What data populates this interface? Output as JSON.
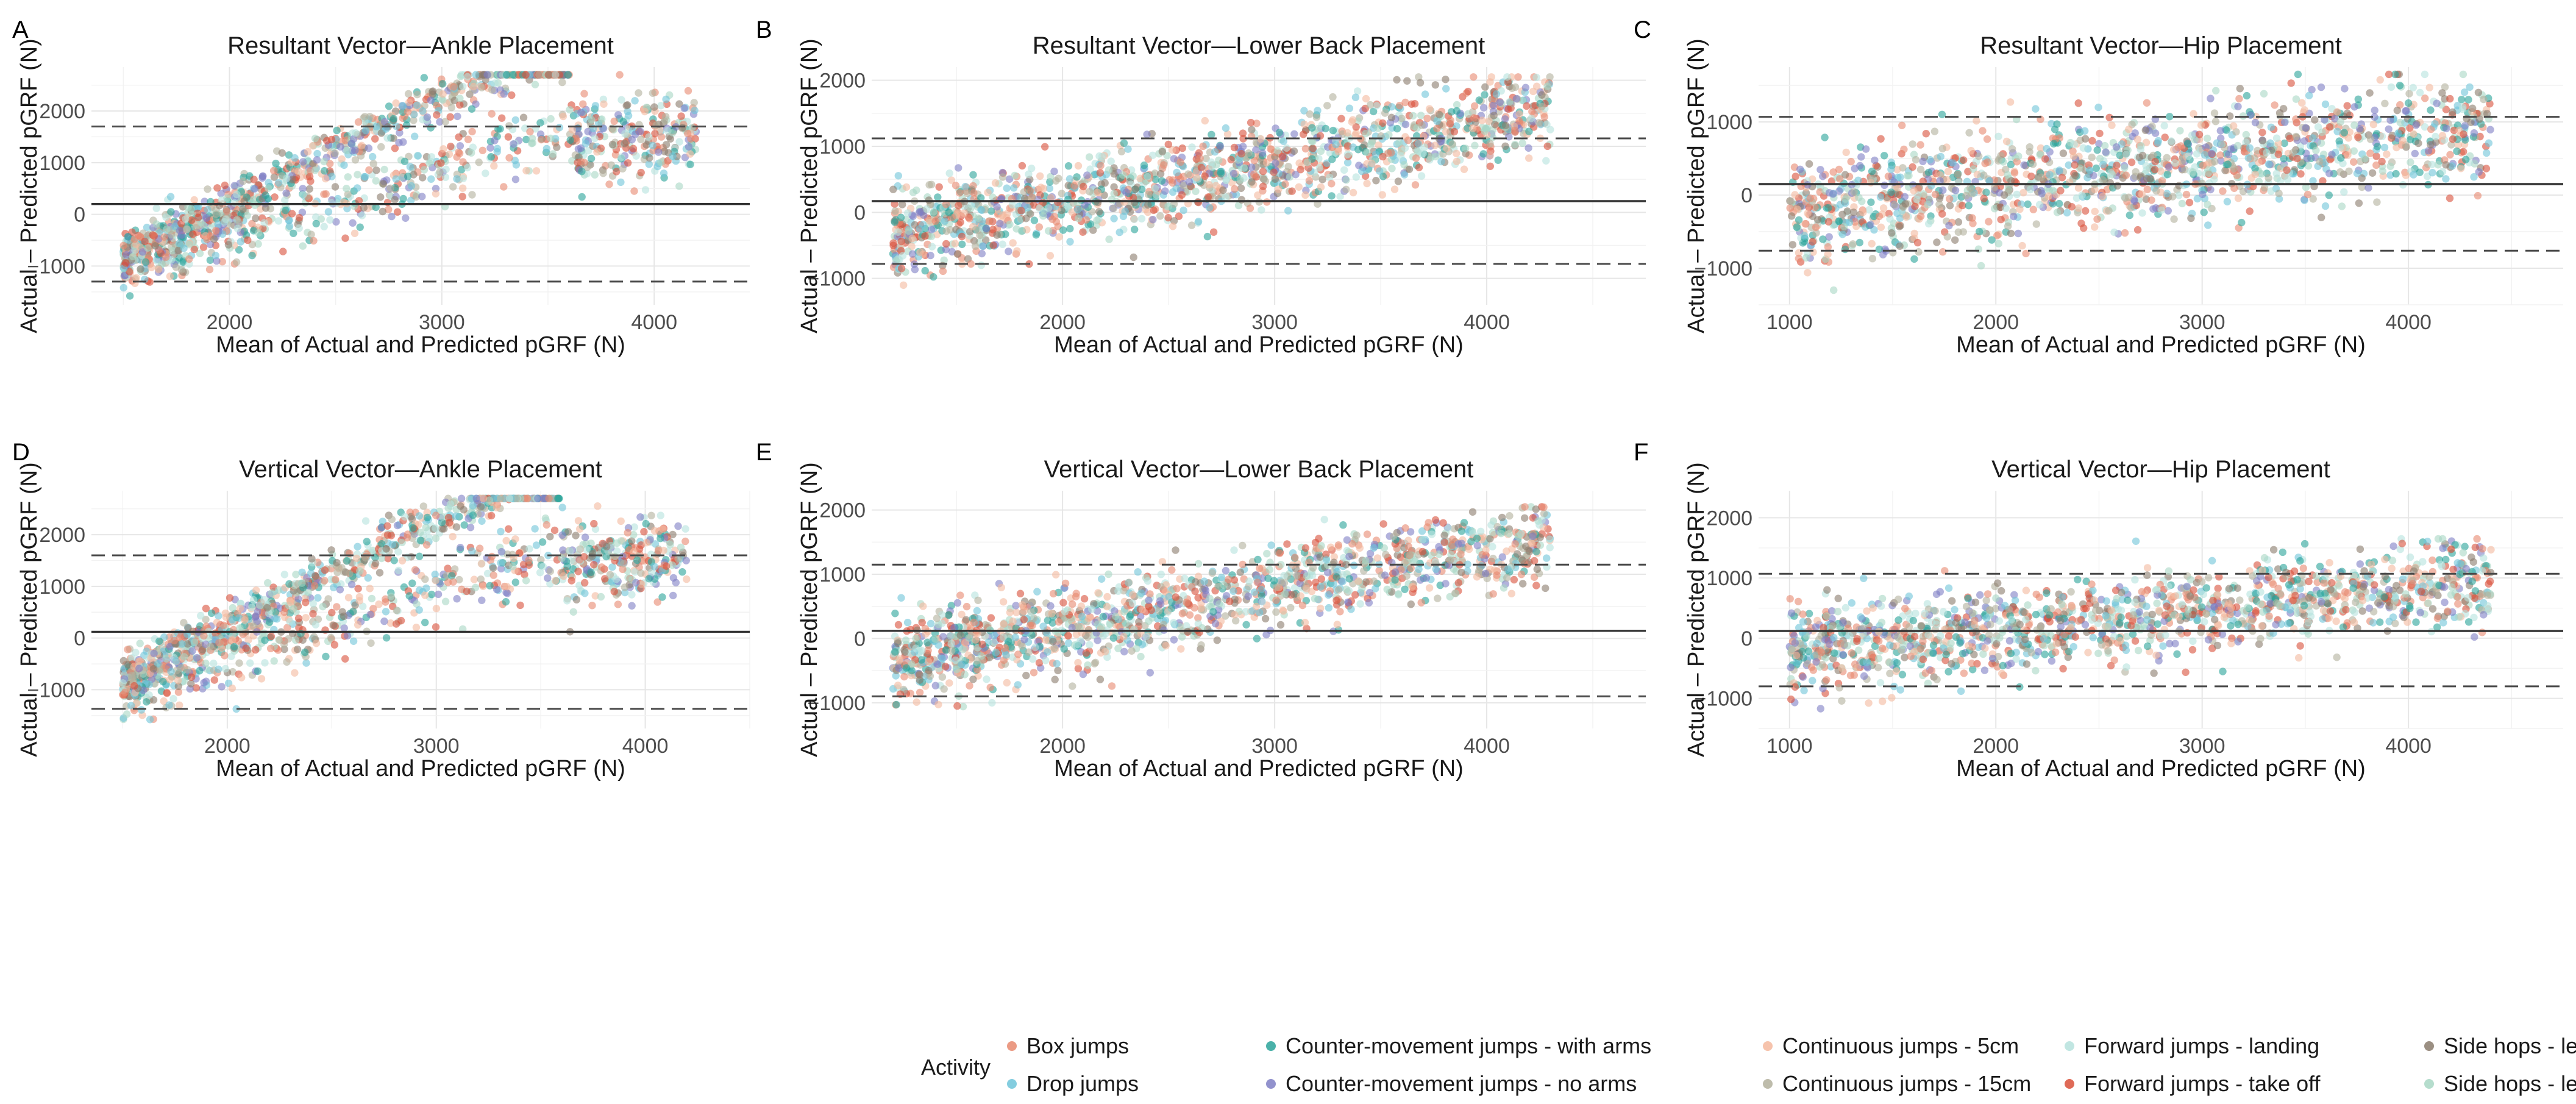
{
  "chart_data": [
    {
      "letter": "A",
      "type": "scatter",
      "title": "Resultant Vector—Ankle Placement",
      "xlabel": "Mean of Actual and Predicted pGRF (N)",
      "ylabel": "Actual – Predicted pGRF (N)",
      "xlim": [
        1350,
        4450
      ],
      "ylim": [
        -1750,
        2850
      ],
      "xticks": [
        2000,
        3000,
        4000
      ],
      "yticks": [
        -1000,
        0,
        1000,
        2000
      ],
      "bias": 200,
      "loa_upper": 1700,
      "loa_lower": -1300,
      "grid": true,
      "pattern": "ankle"
    },
    {
      "letter": "B",
      "type": "scatter",
      "title": "Resultant Vector—Lower Back Placement",
      "xlabel": "Mean of Actual and Predicted pGRF (N)",
      "ylabel": "Actual – Predicted pGRF (N)",
      "xlim": [
        1100,
        4750
      ],
      "ylim": [
        -1400,
        2200
      ],
      "xticks": [
        2000,
        3000,
        4000
      ],
      "yticks": [
        -1000,
        0,
        1000,
        2000
      ],
      "bias": 170,
      "loa_upper": 1120,
      "loa_lower": -780,
      "grid": true,
      "pattern": "back"
    },
    {
      "letter": "C",
      "type": "scatter",
      "title": "Resultant Vector—Hip Placement",
      "xlabel": "Mean of Actual and Predicted pGRF (N)",
      "ylabel": "Actual – Predicted pGRF (N)",
      "xlim": [
        850,
        4750
      ],
      "ylim": [
        -1500,
        1750
      ],
      "xticks": [
        1000,
        2000,
        3000,
        4000
      ],
      "yticks": [
        -1000,
        0,
        1000
      ],
      "bias": 150,
      "loa_upper": 1070,
      "loa_lower": -760,
      "grid": true,
      "pattern": "hip"
    },
    {
      "letter": "D",
      "type": "scatter",
      "title": "Vertical Vector—Ankle Placement",
      "xlabel": "Mean of Actual and Predicted pGRF (N)",
      "ylabel": "Actual – Predicted pGRF (N)",
      "xlim": [
        1350,
        4500
      ],
      "ylim": [
        -1750,
        2850
      ],
      "xticks": [
        2000,
        3000,
        4000
      ],
      "yticks": [
        -1000,
        0,
        1000,
        2000
      ],
      "bias": 120,
      "loa_upper": 1600,
      "loa_lower": -1370,
      "grid": true,
      "pattern": "ankle"
    },
    {
      "letter": "E",
      "type": "scatter",
      "title": "Vertical Vector—Lower Back Placement",
      "xlabel": "Mean of Actual and Predicted pGRF (N)",
      "ylabel": "Actual – Predicted pGRF (N)",
      "xlim": [
        1100,
        4750
      ],
      "ylim": [
        -1400,
        2300
      ],
      "xticks": [
        2000,
        3000,
        4000
      ],
      "yticks": [
        -1000,
        0,
        1000,
        2000
      ],
      "bias": 120,
      "loa_upper": 1150,
      "loa_lower": -900,
      "grid": true,
      "pattern": "back"
    },
    {
      "letter": "F",
      "type": "scatter",
      "title": "Vertical Vector—Hip Placement",
      "xlabel": "Mean of Actual and Predicted pGRF (N)",
      "ylabel": "Actual – Predicted pGRF (N)",
      "xlim": [
        850,
        4750
      ],
      "ylim": [
        -1500,
        2450
      ],
      "xticks": [
        1000,
        2000,
        3000,
        4000
      ],
      "yticks": [
        -1000,
        0,
        1000,
        2000
      ],
      "bias": 120,
      "loa_upper": 1070,
      "loa_lower": -800,
      "grid": true,
      "pattern": "hip"
    }
  ],
  "legend": {
    "title": "Activity",
    "position": "bottom",
    "items": [
      {
        "label": "Box jumps",
        "color": "#e8896f"
      },
      {
        "label": "Drop jumps",
        "color": "#6fc4d9"
      },
      {
        "label": "Counter-movement jumps - with arms",
        "color": "#2aa39a"
      },
      {
        "label": "Counter-movement jumps - no arms",
        "color": "#7f7fc4"
      },
      {
        "label": "Continuous jumps - 5cm",
        "color": "#f4b99e"
      },
      {
        "label": "Continuous jumps - 15cm",
        "color": "#b3b09c"
      },
      {
        "label": "Forward jumps - landing",
        "color": "#b6e2dd"
      },
      {
        "label": "Forward jumps - take off",
        "color": "#d9503a"
      },
      {
        "label": "Side hops - legs apart",
        "color": "#8a7b6c"
      },
      {
        "label": "Side hops - legs together",
        "color": "#a8d7c4"
      }
    ]
  }
}
